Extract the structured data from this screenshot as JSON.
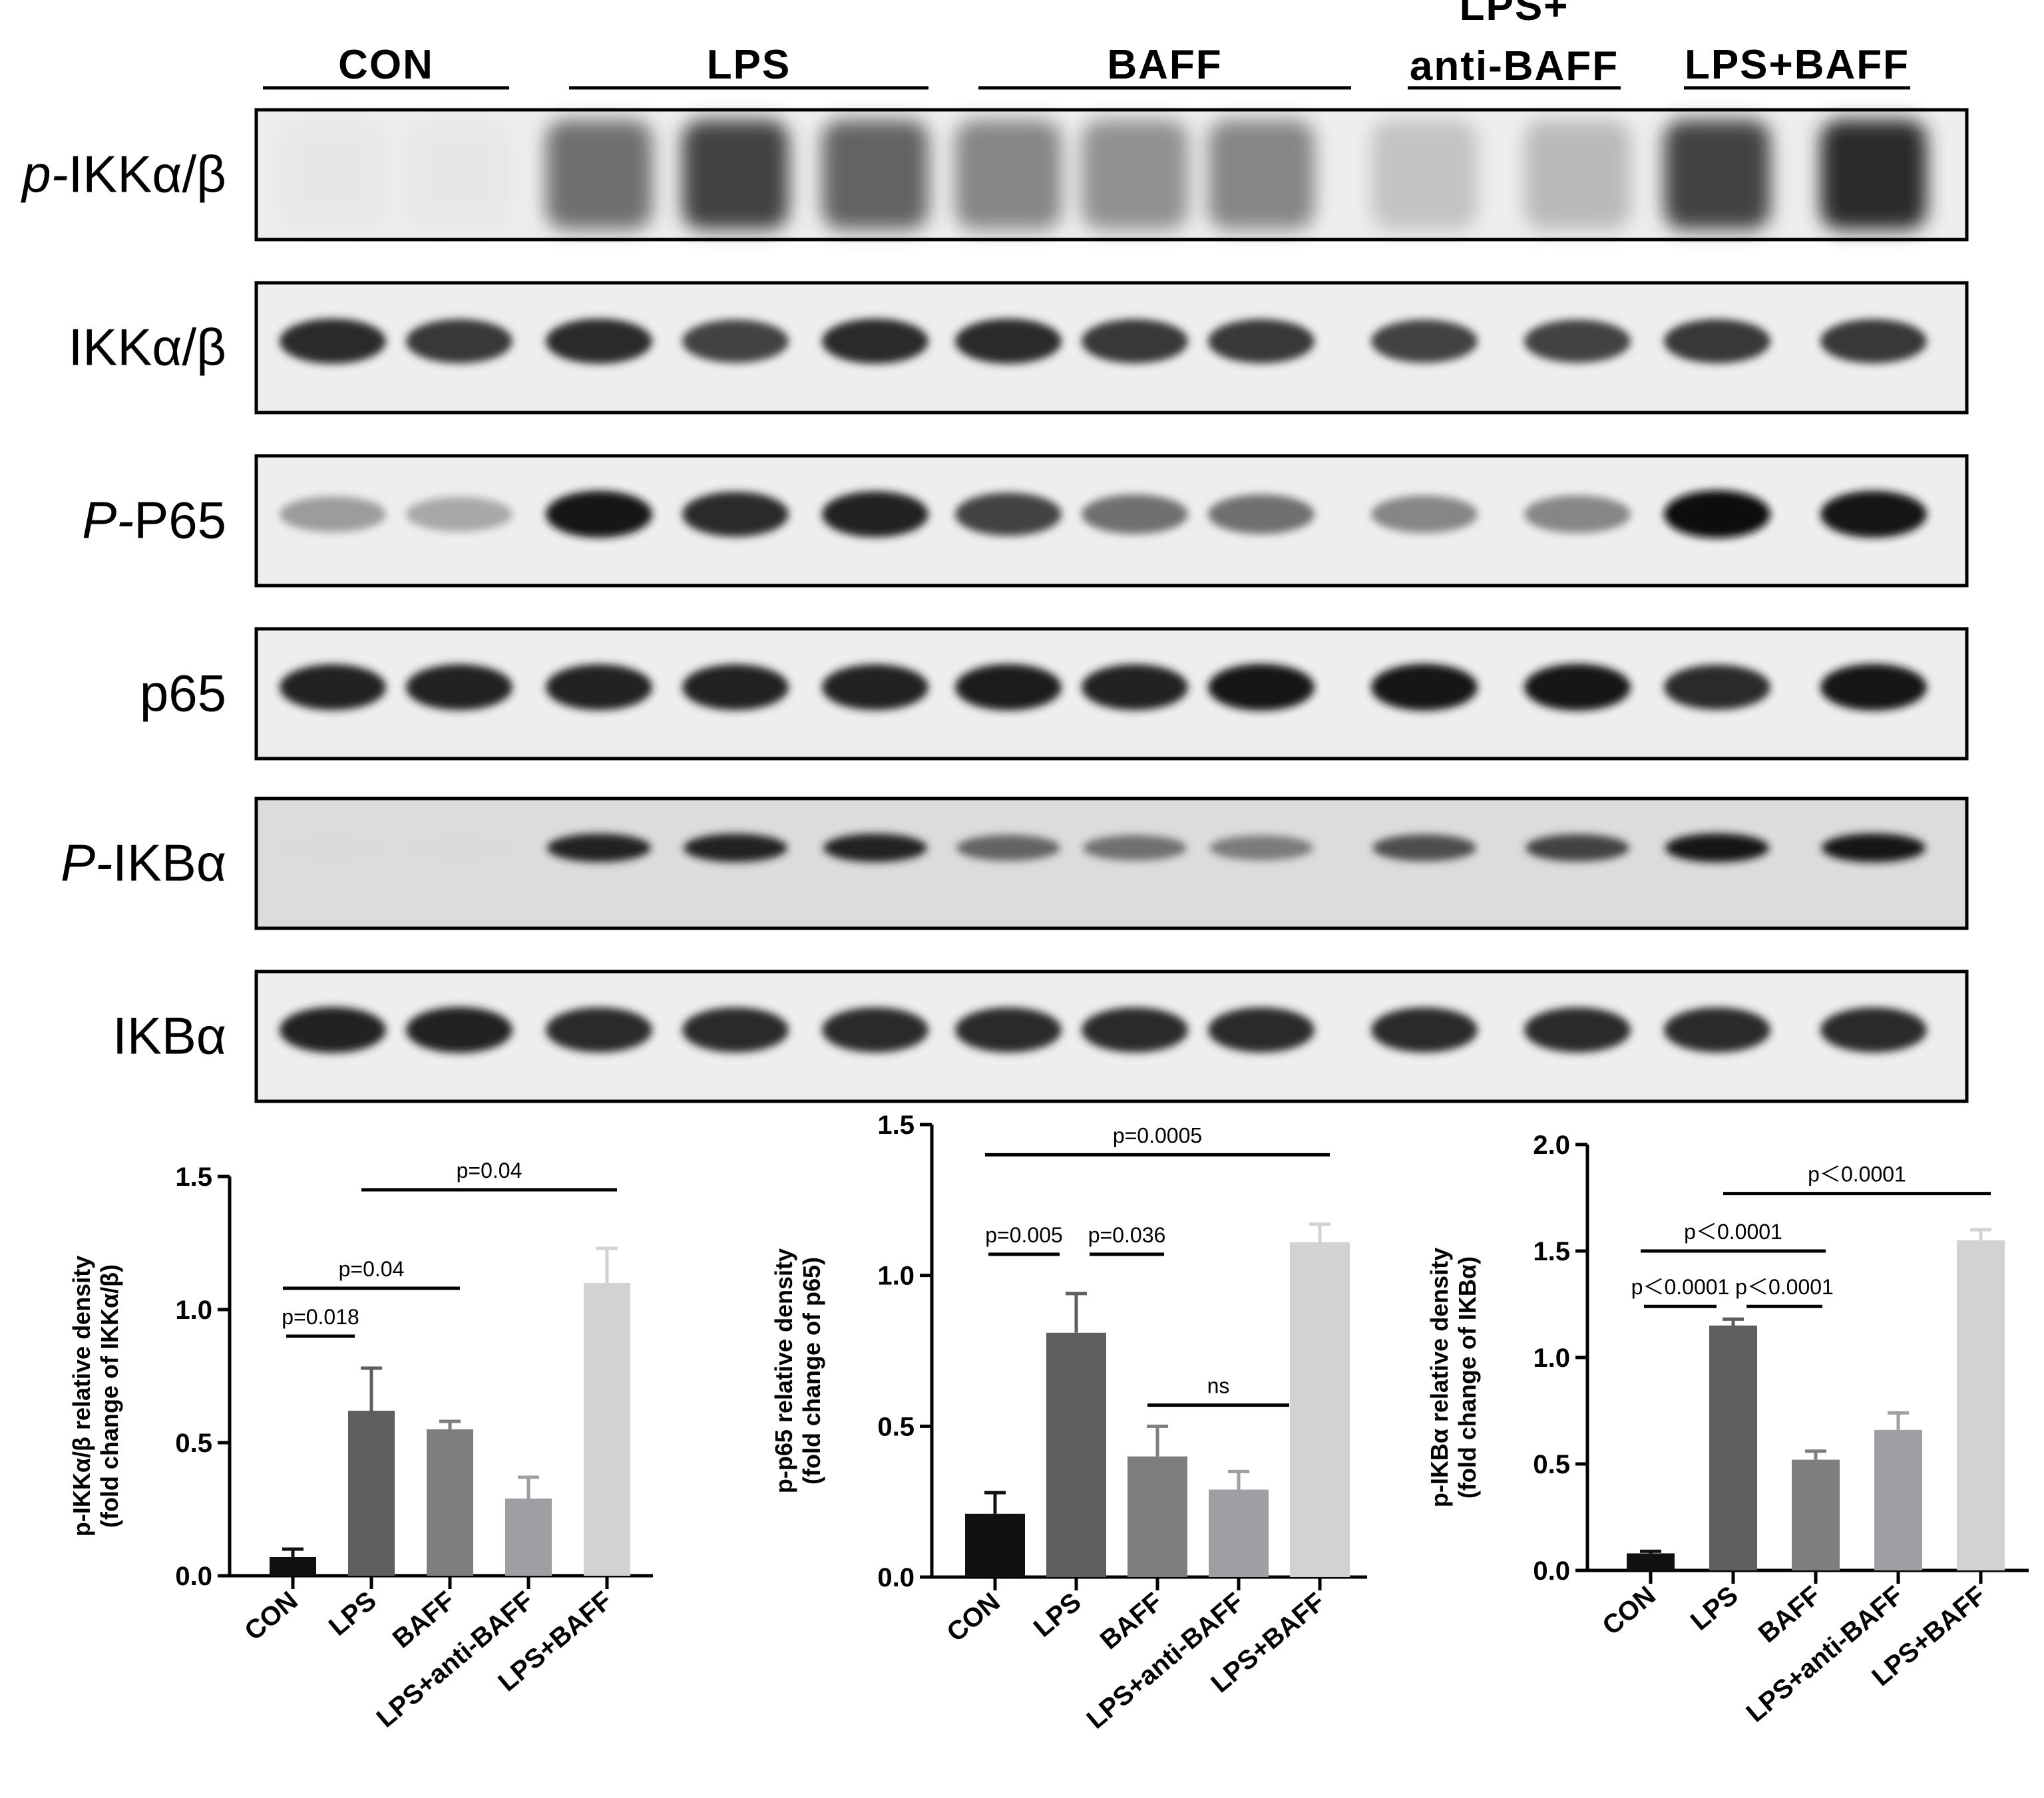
{
  "blot": {
    "groups": [
      "CON",
      "LPS",
      "BAFF",
      "LPS+\nanti-BAFF",
      "LPS+BAFF"
    ],
    "group_lines": [
      {
        "line1": "",
        "line2": "CON"
      },
      {
        "line1": "",
        "line2": "LPS"
      },
      {
        "line1": "",
        "line2": "BAFF"
      },
      {
        "line1": "LPS+",
        "line2": "anti-BAFF"
      },
      {
        "line1": "",
        "line2": "LPS+BAFF"
      }
    ],
    "lanes_per_group": [
      2,
      3,
      3,
      2,
      2
    ],
    "rows": [
      {
        "prefix": "p-",
        "name": "IKKα/β",
        "intensity": [
          0.02,
          0.02,
          0.55,
          0.75,
          0.6,
          0.45,
          0.4,
          0.45,
          0.18,
          0.22,
          0.75,
          0.85
        ],
        "style": "smear"
      },
      {
        "prefix": "",
        "name": "IKKα/β",
        "intensity": [
          0.85,
          0.8,
          0.85,
          0.75,
          0.85,
          0.85,
          0.8,
          0.8,
          0.75,
          0.75,
          0.8,
          0.8
        ],
        "style": "band"
      },
      {
        "prefix": "P-",
        "name": "P65",
        "intensity": [
          0.35,
          0.3,
          0.95,
          0.85,
          0.9,
          0.75,
          0.55,
          0.55,
          0.45,
          0.45,
          1.0,
          0.95
        ],
        "style": "band"
      },
      {
        "prefix": "",
        "name": "p65",
        "intensity": [
          0.9,
          0.9,
          0.9,
          0.9,
          0.9,
          0.92,
          0.9,
          0.95,
          0.95,
          0.95,
          0.85,
          0.95
        ],
        "style": "band"
      },
      {
        "prefix": "P-",
        "name": "IKBα",
        "intensity": [
          0.08,
          0.08,
          0.9,
          0.9,
          0.9,
          0.6,
          0.55,
          0.5,
          0.7,
          0.75,
          0.95,
          0.95
        ],
        "style": "thin"
      },
      {
        "prefix": "",
        "name": "IKBα",
        "intensity": [
          0.9,
          0.9,
          0.85,
          0.85,
          0.85,
          0.85,
          0.85,
          0.85,
          0.85,
          0.85,
          0.85,
          0.85
        ],
        "style": "band"
      }
    ]
  },
  "colors": {
    "CON": "#111111",
    "LPS": "#5e5e5e",
    "BAFF": "#7e7e7e",
    "LPS+anti-BAFF": "#9e9ea3",
    "LPS+BAFF": "#d2d2d2"
  },
  "chart_data": [
    {
      "type": "bar",
      "categories": [
        "CON",
        "LPS",
        "BAFF",
        "LPS+anti-BAFF",
        "LPS+BAFF"
      ],
      "values": [
        0.07,
        0.62,
        0.55,
        0.29,
        1.1
      ],
      "errors": [
        0.03,
        0.16,
        0.03,
        0.08,
        0.13
      ],
      "ylabel_line1": "p-IKKα/β relative density",
      "ylabel_line2": "(fold change of IKKα/β)",
      "ylim": [
        0,
        1.5
      ],
      "yticks": [
        0.0,
        0.5,
        1.0,
        1.5
      ],
      "tick_labels": [
        "0.0",
        "0.5",
        "1.0",
        "1.5"
      ],
      "annotations": [
        {
          "from": 0,
          "to": 1,
          "text": "p=0.018",
          "level": 1
        },
        {
          "from": 0,
          "to": 2,
          "text": "p=0.04",
          "level": 2
        },
        {
          "from": 1,
          "to": 4,
          "text": "p=0.04",
          "level": 3
        }
      ]
    },
    {
      "type": "bar",
      "categories": [
        "CON",
        "LPS",
        "BAFF",
        "LPS+anti-BAFF",
        "LPS+BAFF"
      ],
      "values": [
        0.21,
        0.81,
        0.4,
        0.29,
        1.11
      ],
      "errors": [
        0.07,
        0.13,
        0.1,
        0.06,
        0.06
      ],
      "ylabel_line1": "p-p65 relative density",
      "ylabel_line2": "(fold change of p65)",
      "ylim": [
        0,
        1.5
      ],
      "yticks": [
        0.0,
        0.5,
        1.0,
        1.5
      ],
      "tick_labels": [
        "0.0",
        "0.5",
        "1.0",
        "1.5"
      ],
      "annotations": [
        {
          "from": 0,
          "to": 1,
          "text": "p=0.005",
          "level": 1
        },
        {
          "from": 1,
          "to": 2,
          "text": "p=0.036",
          "level": 1
        },
        {
          "from": 2,
          "to": 3.5,
          "text": "ns",
          "level": 0
        },
        {
          "from": 0,
          "to": 4,
          "text": "p=0.0005",
          "level": 2
        }
      ]
    },
    {
      "type": "bar",
      "categories": [
        "CON",
        "LPS",
        "BAFF",
        "LPS+anti-BAFF",
        "LPS+BAFF"
      ],
      "values": [
        0.08,
        1.15,
        0.52,
        0.66,
        1.55
      ],
      "errors": [
        0.01,
        0.03,
        0.04,
        0.08,
        0.05
      ],
      "ylabel_line1": "p-IKBα relative density",
      "ylabel_line2": "(fold change of IKBα)",
      "ylim": [
        0,
        2.0
      ],
      "yticks": [
        0.0,
        0.5,
        1.0,
        1.5,
        2.0
      ],
      "tick_labels": [
        "0.0",
        "0.5",
        "1.0",
        "1.5",
        "2.0"
      ],
      "annotations": [
        {
          "from": 0,
          "to": 1,
          "text": "p＜0.0001",
          "level": 1
        },
        {
          "from": 1,
          "to": 2,
          "text": "p＜0.0001",
          "level": 1
        },
        {
          "from": 0,
          "to": 2,
          "text": "p＜0.0001",
          "level": 2
        },
        {
          "from": 1,
          "to": 4,
          "text": "p＜0.0001",
          "level": 3
        }
      ]
    }
  ]
}
